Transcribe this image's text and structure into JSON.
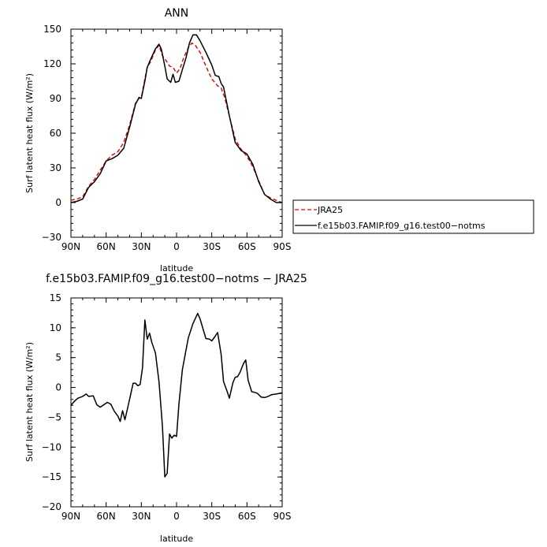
{
  "chart_data": [
    {
      "type": "line",
      "title": "ANN",
      "xlabel": "latitude",
      "ylabel": "Surf latent heat flux (W/m²)",
      "xlim": [
        90,
        -90
      ],
      "ylim": [
        -30,
        150
      ],
      "x_ticks": [
        {
          "value": 90,
          "label": "90N"
        },
        {
          "value": 60,
          "label": "60N"
        },
        {
          "value": 30,
          "label": "30N"
        },
        {
          "value": 0,
          "label": "0"
        },
        {
          "value": -30,
          "label": "30S"
        },
        {
          "value": -60,
          "label": "60S"
        },
        {
          "value": -90,
          "label": "90S"
        }
      ],
      "y_ticks": [
        {
          "value": 150,
          "label": "150"
        },
        {
          "value": 120,
          "label": "120"
        },
        {
          "value": 90,
          "label": "90"
        },
        {
          "value": 60,
          "label": "60"
        },
        {
          "value": 30,
          "label": "30"
        },
        {
          "value": 0,
          "label": "0"
        },
        {
          "value": -30,
          "label": "−30"
        }
      ],
      "legend": {
        "placement": "right",
        "box": true
      },
      "series": [
        {
          "name": "JRA25",
          "color": "#e00000",
          "dash": "dashed",
          "points": [
            [
              90,
              2
            ],
            [
              85,
              3
            ],
            [
              80,
              5
            ],
            [
              75,
              14
            ],
            [
              70,
              20
            ],
            [
              65,
              28
            ],
            [
              60,
              36
            ],
            [
              55,
              41
            ],
            [
              50,
              44
            ],
            [
              45,
              52
            ],
            [
              40,
              67
            ],
            [
              35,
              86
            ],
            [
              32,
              90
            ],
            [
              30,
              91
            ],
            [
              27,
              107
            ],
            [
              25,
              117
            ],
            [
              22,
              122
            ],
            [
              18,
              132
            ],
            [
              15,
              136
            ],
            [
              12,
              127
            ],
            [
              9,
              123
            ],
            [
              6,
              118
            ],
            [
              3,
              117
            ],
            [
              0,
              112
            ],
            [
              -3,
              116
            ],
            [
              -6,
              125
            ],
            [
              -10,
              134
            ],
            [
              -13,
              138
            ],
            [
              -16,
              136
            ],
            [
              -20,
              130
            ],
            [
              -25,
              118
            ],
            [
              -30,
              107
            ],
            [
              -35,
              101
            ],
            [
              -38,
              99
            ],
            [
              -41,
              91
            ],
            [
              -45,
              75
            ],
            [
              -50,
              55
            ],
            [
              -55,
              46
            ],
            [
              -60,
              40
            ],
            [
              -65,
              31
            ],
            [
              -70,
              19
            ],
            [
              -75,
              7
            ],
            [
              -80,
              4
            ],
            [
              -85,
              2
            ],
            [
              -90,
              0
            ]
          ]
        },
        {
          "name": "f.e15b03.FAMIP.f09_g16.test00−notms",
          "color": "#000000",
          "dash": "solid",
          "points": [
            [
              90,
              0
            ],
            [
              85,
              1
            ],
            [
              80,
              3
            ],
            [
              75,
              13
            ],
            [
              70,
              18
            ],
            [
              65,
              25
            ],
            [
              60,
              36
            ],
            [
              55,
              38
            ],
            [
              50,
              41
            ],
            [
              45,
              47
            ],
            [
              40,
              65
            ],
            [
              35,
              85
            ],
            [
              32,
              91
            ],
            [
              30,
              90
            ],
            [
              27,
              105
            ],
            [
              25,
              117
            ],
            [
              22,
              124
            ],
            [
              18,
              133
            ],
            [
              15,
              137
            ],
            [
              13,
              133
            ],
            [
              10,
              118
            ],
            [
              8,
              107
            ],
            [
              5,
              104
            ],
            [
              3,
              111
            ],
            [
              1,
              104
            ],
            [
              -2,
              105
            ],
            [
              -5,
              115
            ],
            [
              -8,
              125
            ],
            [
              -11,
              138
            ],
            [
              -14,
              145
            ],
            [
              -17,
              145
            ],
            [
              -20,
              140
            ],
            [
              -25,
              130
            ],
            [
              -30,
              119
            ],
            [
              -33,
              110
            ],
            [
              -36,
              109
            ],
            [
              -38,
              103
            ],
            [
              -40,
              100
            ],
            [
              -45,
              75
            ],
            [
              -50,
              52
            ],
            [
              -55,
              45
            ],
            [
              -60,
              42
            ],
            [
              -65,
              33
            ],
            [
              -70,
              18
            ],
            [
              -75,
              7
            ],
            [
              -80,
              3
            ],
            [
              -85,
              0
            ],
            [
              -90,
              0
            ]
          ]
        }
      ]
    },
    {
      "type": "line",
      "title": "f.e15b03.FAMIP.f09_g16.test00−notms − JRA25",
      "xlabel": "latitude",
      "ylabel": "Surf latent heat flux (W/m²)",
      "xlim": [
        90,
        -90
      ],
      "ylim": [
        -20,
        15
      ],
      "x_ticks": [
        {
          "value": 90,
          "label": "90N"
        },
        {
          "value": 60,
          "label": "60N"
        },
        {
          "value": 30,
          "label": "30N"
        },
        {
          "value": 0,
          "label": "0"
        },
        {
          "value": -30,
          "label": "30S"
        },
        {
          "value": -60,
          "label": "60S"
        },
        {
          "value": -90,
          "label": "90S"
        }
      ],
      "y_ticks": [
        {
          "value": 15,
          "label": "15"
        },
        {
          "value": 10,
          "label": "10"
        },
        {
          "value": 5,
          "label": "5"
        },
        {
          "value": 0,
          "label": "0"
        },
        {
          "value": -5,
          "label": "−5"
        },
        {
          "value": -10,
          "label": "−10"
        },
        {
          "value": -15,
          "label": "−15"
        },
        {
          "value": -20,
          "label": "−20"
        }
      ],
      "series": [
        {
          "name": "",
          "color": "#000000",
          "dash": "solid",
          "points": [
            [
              90,
              -3
            ],
            [
              87,
              -2.3
            ],
            [
              84,
              -1.8
            ],
            [
              80,
              -1.5
            ],
            [
              77,
              -1.1
            ],
            [
              75,
              -1.5
            ],
            [
              71,
              -1.4
            ],
            [
              68,
              -2.9
            ],
            [
              65,
              -3.3
            ],
            [
              62,
              -2.9
            ],
            [
              59,
              -2.5
            ],
            [
              56,
              -2.8
            ],
            [
              53,
              -4
            ],
            [
              50,
              -4.8
            ],
            [
              48,
              -5.7
            ],
            [
              46,
              -3.9
            ],
            [
              44,
              -5.4
            ],
            [
              42,
              -3.7
            ],
            [
              40,
              -2
            ],
            [
              37,
              0.7
            ],
            [
              35,
              0.7
            ],
            [
              33,
              0.3
            ],
            [
              31,
              0.5
            ],
            [
              29,
              3.3
            ],
            [
              27,
              11.3
            ],
            [
              25,
              8.1
            ],
            [
              23,
              9.1
            ],
            [
              21,
              7.5
            ],
            [
              18,
              5.8
            ],
            [
              15,
              1
            ],
            [
              12,
              -6.5
            ],
            [
              10,
              -15
            ],
            [
              8,
              -14.4
            ],
            [
              6,
              -7.8
            ],
            [
              4,
              -8.5
            ],
            [
              2,
              -8
            ],
            [
              0,
              -8.2
            ],
            [
              -2,
              -2.8
            ],
            [
              -5,
              3
            ],
            [
              -10,
              8.3
            ],
            [
              -14,
              10.7
            ],
            [
              -18,
              12.4
            ],
            [
              -20,
              11.5
            ],
            [
              -25,
              8.2
            ],
            [
              -28,
              8.1
            ],
            [
              -30,
              7.8
            ],
            [
              -33,
              8.6
            ],
            [
              -35,
              9.2
            ],
            [
              -38,
              5.5
            ],
            [
              -40,
              1
            ],
            [
              -43,
              -0.6
            ],
            [
              -45,
              -1.8
            ],
            [
              -48,
              0.8
            ],
            [
              -50,
              1.7
            ],
            [
              -52,
              1.8
            ],
            [
              -54,
              2.5
            ],
            [
              -57,
              4
            ],
            [
              -59,
              4.6
            ],
            [
              -61,
              1.2
            ],
            [
              -64,
              -0.7
            ],
            [
              -66,
              -0.8
            ],
            [
              -69,
              -1
            ],
            [
              -72,
              -1.6
            ],
            [
              -75,
              -1.7
            ],
            [
              -78,
              -1.5
            ],
            [
              -81,
              -1.2
            ],
            [
              -85,
              -1.1
            ],
            [
              -90,
              -0.9
            ]
          ]
        }
      ]
    }
  ]
}
